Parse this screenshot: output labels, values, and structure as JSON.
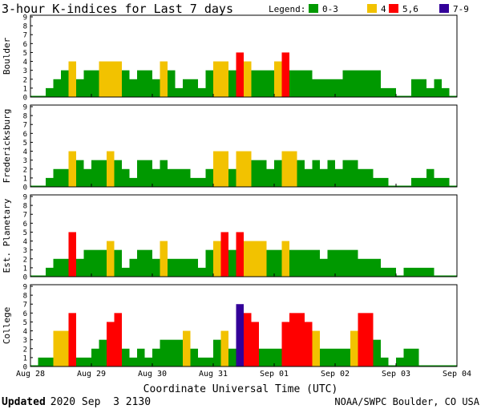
{
  "title": "3-hour K-indices for Last 7 days",
  "legend": {
    "label": "Legend:",
    "items": [
      {
        "label": "0-3",
        "color": "#009900"
      },
      {
        "label": "4",
        "color": "#f2c200"
      },
      {
        "label": "5,6",
        "color": "#ff0000"
      },
      {
        "label": "7-9",
        "color": "#330099"
      }
    ]
  },
  "xlabel": "Coordinate Universal Time (UTC)",
  "footer": {
    "updated_label": "Updated",
    "updated_value": "2020 Sep  3 2130",
    "credit": "NOAA/SWPC Boulder, CO USA"
  },
  "chart_data": {
    "type": "bar",
    "x_ticks": [
      "Aug 28",
      "Aug 29",
      "Aug 30",
      "Aug 31",
      "Sep 01",
      "Sep 02",
      "Sep 03",
      "Sep 04"
    ],
    "y_ticks": [
      "0",
      "1",
      "2",
      "3",
      "4",
      "5",
      "6",
      "7",
      "8",
      "9"
    ],
    "ylim": [
      0,
      9
    ],
    "intervals_per_day": 8,
    "panels": [
      {
        "name": "Boulder",
        "values": [
          0,
          0,
          1,
          2,
          3,
          4,
          2,
          3,
          3,
          4,
          4,
          4,
          3,
          2,
          3,
          3,
          2,
          4,
          3,
          1,
          2,
          2,
          1,
          3,
          4,
          4,
          3,
          5,
          4,
          3,
          3,
          3,
          4,
          5,
          3,
          3,
          3,
          2,
          2,
          2,
          2,
          3,
          3,
          3,
          3,
          3,
          1,
          1,
          0,
          0,
          2,
          2,
          1,
          2,
          1,
          0
        ]
      },
      {
        "name": "Fredericksburg",
        "values": [
          0,
          0,
          1,
          2,
          2,
          4,
          3,
          2,
          3,
          3,
          4,
          3,
          2,
          1,
          3,
          3,
          2,
          3,
          2,
          2,
          2,
          1,
          1,
          2,
          4,
          4,
          2,
          4,
          4,
          3,
          3,
          2,
          3,
          4,
          4,
          3,
          2,
          3,
          2,
          3,
          2,
          3,
          3,
          2,
          2,
          1,
          1,
          0,
          0,
          0,
          1,
          1,
          2,
          1,
          1,
          0
        ]
      },
      {
        "name": "Est. Planetary",
        "values": [
          0,
          0,
          1,
          2,
          2,
          5,
          2,
          3,
          3,
          3,
          4,
          3,
          1,
          2,
          3,
          3,
          2,
          4,
          2,
          2,
          2,
          2,
          1,
          3,
          4,
          5,
          3,
          5,
          4,
          4,
          4,
          3,
          3,
          4,
          3,
          3,
          3,
          3,
          2,
          3,
          3,
          3,
          3,
          2,
          2,
          2,
          1,
          1,
          0,
          1,
          1,
          1,
          1,
          0,
          0,
          0
        ]
      },
      {
        "name": "College",
        "values": [
          0,
          1,
          1,
          4,
          4,
          6,
          1,
          1,
          2,
          3,
          5,
          6,
          2,
          1,
          2,
          1,
          2,
          3,
          3,
          3,
          4,
          2,
          1,
          1,
          3,
          4,
          2,
          7,
          6,
          5,
          2,
          2,
          2,
          5,
          6,
          6,
          5,
          4,
          2,
          2,
          2,
          2,
          4,
          6,
          6,
          3,
          1,
          0,
          1,
          2,
          2,
          0,
          0,
          0,
          0,
          0
        ]
      }
    ]
  }
}
